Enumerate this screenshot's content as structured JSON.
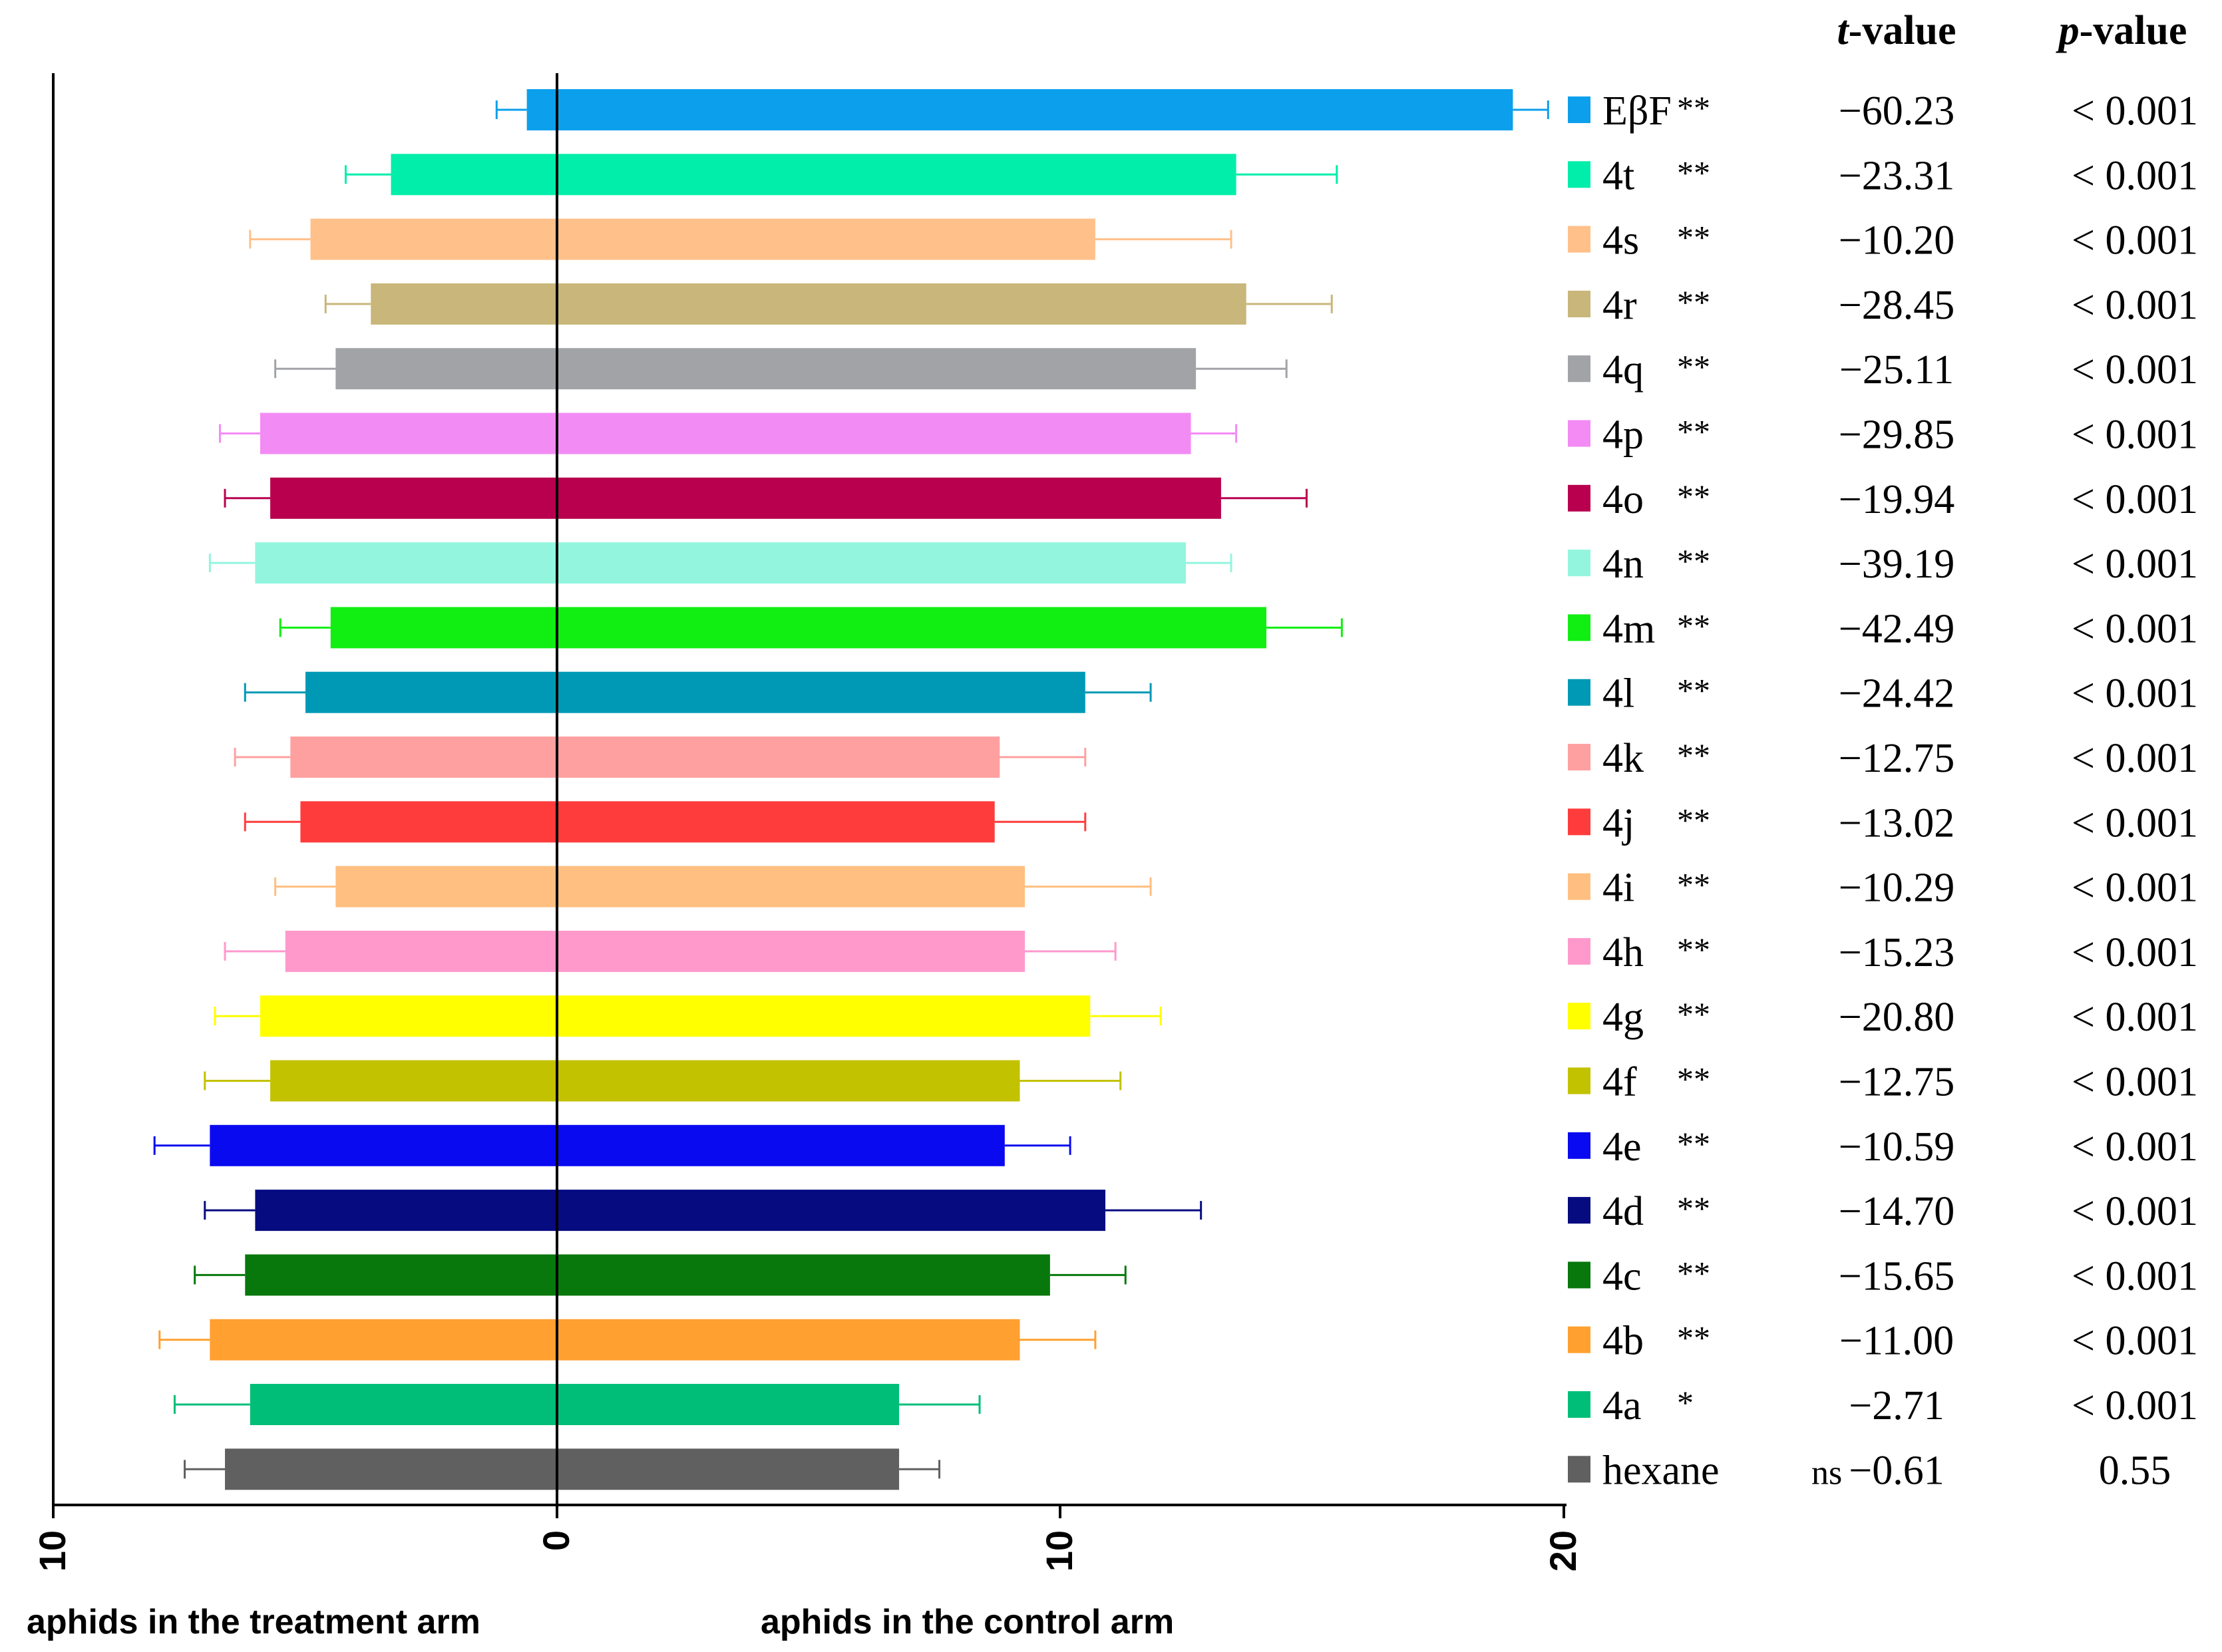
{
  "chart_data": {
    "type": "bar",
    "orientation": "horizontal-diverging",
    "xlabel_left": "aphids in the treatment arm",
    "xlabel_right": "aphids in the control arm",
    "tick_labels": [
      "10",
      "0",
      "10",
      "20"
    ],
    "xlim": [
      -10,
      20
    ],
    "header": {
      "t": "t",
      "t_rest": "-value",
      "p": "p",
      "p_rest": "-value"
    },
    "series": [
      {
        "name": "EβF",
        "sig": "**",
        "color": "#0CA0EC",
        "treatment": 0.6,
        "treatment_err": 0.6,
        "control": 19.0,
        "control_err": 0.7,
        "t": "−60.23",
        "p": "< 0.001"
      },
      {
        "name": "4t",
        "sig": "**",
        "color": "#00EEAA",
        "treatment": 3.3,
        "treatment_err": 0.9,
        "control": 13.5,
        "control_err": 2.0,
        "t": "−23.31",
        "p": "< 0.001"
      },
      {
        "name": "4s",
        "sig": "**",
        "color": "#FFC08A",
        "treatment": 4.9,
        "treatment_err": 1.2,
        "control": 10.7,
        "control_err": 2.7,
        "t": "−10.20",
        "p": "< 0.001"
      },
      {
        "name": "4r",
        "sig": "**",
        "color": "#C8B67A",
        "treatment": 3.7,
        "treatment_err": 0.9,
        "control": 13.7,
        "control_err": 1.7,
        "t": "−28.45",
        "p": "< 0.001"
      },
      {
        "name": "4q",
        "sig": "**",
        "color": "#A1A3A6",
        "treatment": 4.4,
        "treatment_err": 1.2,
        "control": 12.7,
        "control_err": 1.8,
        "t": "−25.11",
        "p": "< 0.001"
      },
      {
        "name": "4p",
        "sig": "**",
        "color": "#F38BF5",
        "treatment": 5.9,
        "treatment_err": 0.8,
        "control": 12.6,
        "control_err": 0.9,
        "t": "−29.85",
        "p": "< 0.001"
      },
      {
        "name": "4o",
        "sig": "**",
        "color": "#B8004F",
        "treatment": 5.7,
        "treatment_err": 0.9,
        "control": 13.2,
        "control_err": 1.7,
        "t": "−19.94",
        "p": "< 0.001"
      },
      {
        "name": "4n",
        "sig": "**",
        "color": "#93F5DE",
        "treatment": 6.0,
        "treatment_err": 0.9,
        "control": 12.5,
        "control_err": 0.9,
        "t": "−39.19",
        "p": "< 0.001"
      },
      {
        "name": "4m",
        "sig": "**",
        "color": "#11EE11",
        "treatment": 4.5,
        "treatment_err": 1.0,
        "control": 14.1,
        "control_err": 1.5,
        "t": "−42.49",
        "p": "< 0.001"
      },
      {
        "name": "4l",
        "sig": "**",
        "color": "#0099B5",
        "treatment": 5.0,
        "treatment_err": 1.2,
        "control": 10.5,
        "control_err": 1.3,
        "t": "−24.42",
        "p": "< 0.001"
      },
      {
        "name": "4k",
        "sig": "**",
        "color": "#FFA0A0",
        "treatment": 5.3,
        "treatment_err": 1.1,
        "control": 8.8,
        "control_err": 1.7,
        "t": "−12.75",
        "p": "< 0.001"
      },
      {
        "name": "4j",
        "sig": "**",
        "color": "#FF3C3C",
        "treatment": 5.1,
        "treatment_err": 1.1,
        "control": 8.7,
        "control_err": 1.8,
        "t": "−13.02",
        "p": "< 0.001"
      },
      {
        "name": "4i",
        "sig": "**",
        "color": "#FFBF80",
        "treatment": 4.4,
        "treatment_err": 1.2,
        "control": 9.3,
        "control_err": 2.5,
        "t": "−10.29",
        "p": "< 0.001"
      },
      {
        "name": "4h",
        "sig": "**",
        "color": "#FF99CC",
        "treatment": 5.4,
        "treatment_err": 1.2,
        "control": 9.3,
        "control_err": 1.8,
        "t": "−15.23",
        "p": "< 0.001"
      },
      {
        "name": "4g",
        "sig": "**",
        "color": "#FFFF00",
        "treatment": 5.9,
        "treatment_err": 0.9,
        "control": 10.6,
        "control_err": 1.4,
        "t": "−20.80",
        "p": "< 0.001"
      },
      {
        "name": "4f",
        "sig": "**",
        "color": "#C2C200",
        "treatment": 5.7,
        "treatment_err": 1.3,
        "control": 9.2,
        "control_err": 2.0,
        "t": "−12.75",
        "p": "< 0.001"
      },
      {
        "name": "4e",
        "sig": "**",
        "color": "#0A0AF0",
        "treatment": 6.9,
        "treatment_err": 1.1,
        "control": 8.9,
        "control_err": 1.3,
        "t": "−10.59",
        "p": "< 0.001"
      },
      {
        "name": "4d",
        "sig": "**",
        "color": "#070B80",
        "treatment": 6.0,
        "treatment_err": 1.0,
        "control": 10.9,
        "control_err": 1.9,
        "t": "−14.70",
        "p": "< 0.001"
      },
      {
        "name": "4c",
        "sig": "**",
        "color": "#08780C",
        "treatment": 6.2,
        "treatment_err": 1.0,
        "control": 9.8,
        "control_err": 1.5,
        "t": "−15.65",
        "p": "< 0.001"
      },
      {
        "name": "4b",
        "sig": "**",
        "color": "#FFA030",
        "treatment": 6.9,
        "treatment_err": 1.0,
        "control": 9.2,
        "control_err": 1.5,
        "t": "−11.00",
        "p": "< 0.001"
      },
      {
        "name": "4a",
        "sig": "*",
        "color": "#00BE78",
        "treatment": 6.1,
        "treatment_err": 1.5,
        "control": 6.8,
        "control_err": 1.6,
        "t": "−2.71",
        "p": "< 0.001"
      },
      {
        "name": "hexane",
        "sig": "ns",
        "color": "#606060",
        "treatment": 6.6,
        "treatment_err": 0.8,
        "control": 6.8,
        "control_err": 0.8,
        "t": "−0.61",
        "p": "0.55"
      }
    ]
  }
}
